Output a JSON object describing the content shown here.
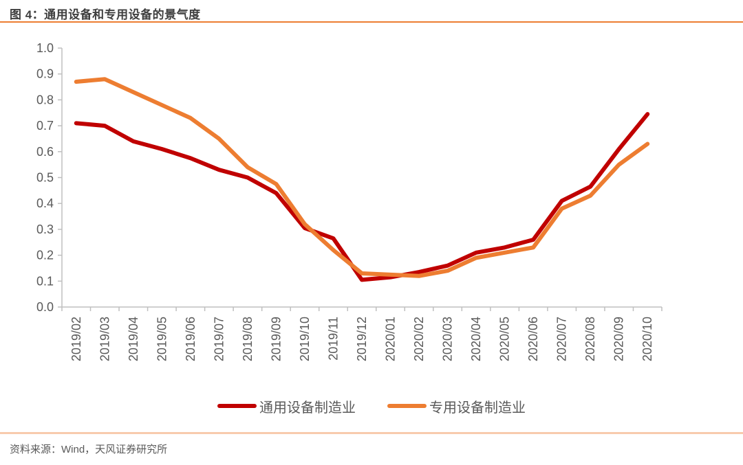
{
  "header": {
    "title": "图 4：通用设备和专用设备的景气度",
    "rule_color": "#ED7D31"
  },
  "chart_data": {
    "type": "line",
    "categories": [
      "2019/02",
      "2019/03",
      "2019/04",
      "2019/05",
      "2019/06",
      "2019/07",
      "2019/08",
      "2019/09",
      "2019/10",
      "2019/11",
      "2019/12",
      "2020/01",
      "2020/02",
      "2020/03",
      "2020/04",
      "2020/05",
      "2020/06",
      "2020/07",
      "2020/08",
      "2020/09",
      "2020/10"
    ],
    "series": [
      {
        "name": "通用设备制造业",
        "color": "#C00000",
        "values": [
          0.71,
          0.7,
          0.64,
          0.61,
          0.575,
          0.53,
          0.5,
          0.44,
          0.305,
          0.265,
          0.105,
          0.115,
          0.135,
          0.16,
          0.21,
          0.23,
          0.26,
          0.41,
          0.465,
          0.61,
          0.745
        ]
      },
      {
        "name": "专用设备制造业",
        "color": "#ED7D31",
        "values": [
          0.87,
          0.88,
          0.83,
          0.78,
          0.73,
          0.65,
          0.54,
          0.475,
          0.32,
          0.22,
          0.13,
          0.125,
          0.12,
          0.14,
          0.19,
          0.21,
          0.23,
          0.38,
          0.43,
          0.55,
          0.63
        ]
      }
    ],
    "title": "",
    "xlabel": "",
    "ylabel": "",
    "ylim": [
      0.0,
      1.0
    ],
    "ytick_step": 0.1,
    "ytick_labels": [
      "0.0",
      "0.1",
      "0.2",
      "0.3",
      "0.4",
      "0.5",
      "0.6",
      "0.7",
      "0.8",
      "0.9",
      "1.0"
    ],
    "grid": false,
    "legend_position": "bottom",
    "axis_color": "#BFBFBF",
    "tick_label_color": "#595959"
  },
  "footer": {
    "source": "资料来源：Wind，天风证券研究所",
    "rule_color": "#F8CBAD"
  }
}
